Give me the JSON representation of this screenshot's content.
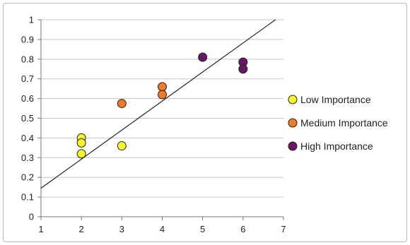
{
  "chart_data": {
    "type": "scatter",
    "title": "",
    "xlabel": "",
    "ylabel": "",
    "xlim": [
      1,
      7
    ],
    "ylim": [
      0,
      1
    ],
    "x_ticks": [
      "1",
      "2",
      "3",
      "4",
      "5",
      "6",
      "7"
    ],
    "y_ticks": [
      "0",
      "0.1",
      "0.2",
      "0.3",
      "0.4",
      "0.5",
      "0.6",
      "0.7",
      "0.8",
      "0.9",
      "1"
    ],
    "grid": "horizontal",
    "legend_position": "right",
    "series": [
      {
        "name": "Low Importance",
        "color": "#f5f52a",
        "points": [
          {
            "x": 2,
            "y": 0.4
          },
          {
            "x": 2,
            "y": 0.375
          },
          {
            "x": 2,
            "y": 0.32
          },
          {
            "x": 3,
            "y": 0.36
          }
        ]
      },
      {
        "name": "Medium Importance",
        "color": "#f07a28",
        "points": [
          {
            "x": 3,
            "y": 0.575
          },
          {
            "x": 4,
            "y": 0.66
          },
          {
            "x": 4,
            "y": 0.62
          }
        ]
      },
      {
        "name": "High Importance",
        "color": "#6a1466",
        "points": [
          {
            "x": 5,
            "y": 0.81
          },
          {
            "x": 6,
            "y": 0.785
          },
          {
            "x": 6,
            "y": 0.75
          }
        ]
      }
    ],
    "trendline": {
      "x": [
        1,
        6.8
      ],
      "y": [
        0.145,
        1.0
      ]
    }
  }
}
